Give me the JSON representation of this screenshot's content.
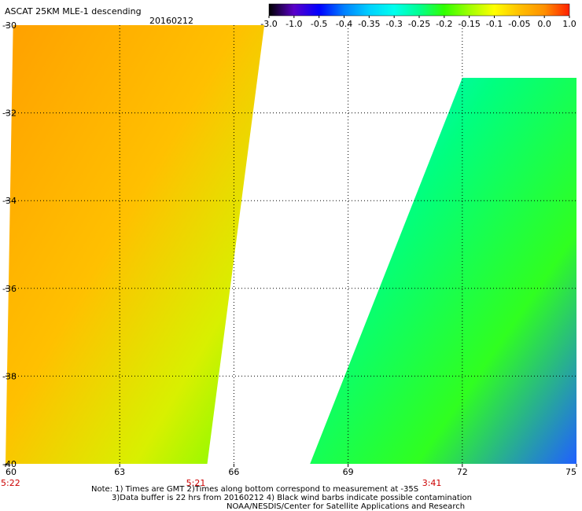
{
  "chart_data": {
    "type": "heatmap",
    "title": "ASCAT 25KM MLE-1 descending",
    "date": "20160212",
    "xlim": [
      60,
      75
    ],
    "ylim": [
      -40,
      -30
    ],
    "x_ticks": [
      {
        "value": 60,
        "label": "60"
      },
      {
        "value": 63,
        "label": "63"
      },
      {
        "value": 66,
        "label": "66"
      },
      {
        "value": 69,
        "label": "69"
      },
      {
        "value": 72,
        "label": "72"
      },
      {
        "value": 75,
        "label": "75"
      }
    ],
    "y_ticks": [
      {
        "value": -30,
        "label": "-30"
      },
      {
        "value": -32,
        "label": "-32"
      },
      {
        "value": -34,
        "label": "-34"
      },
      {
        "value": -36,
        "label": "-36"
      },
      {
        "value": -38,
        "label": "-38"
      },
      {
        "value": -40,
        "label": "-40"
      }
    ],
    "times": [
      {
        "lon": 60,
        "label": "5:22"
      },
      {
        "lon": 65,
        "label": "5:21"
      },
      {
        "lon": 71.2,
        "label": "3:41"
      }
    ],
    "colorbar": {
      "labels": [
        "-3.0",
        "-1.0",
        "-0.5",
        "-0.4",
        "-0.35",
        "-0.3",
        "-0.25",
        "-0.2",
        "-0.15",
        "-0.1",
        "-0.05",
        "0.0",
        "1.0"
      ],
      "colors": [
        "#000000",
        "#5a00c8",
        "#0000ff",
        "#0080ff",
        "#00d0ff",
        "#00ffee",
        "#00ff90",
        "#30ff00",
        "#a0ff00",
        "#ffff00",
        "#ffc000",
        "#ff9000",
        "#ff2000"
      ]
    },
    "swaths": [
      {
        "name": "",
        "lon_left_north": 60.2,
        "lon_right_north": 66.8,
        "lon_left_south": 60.0,
        "lon_right_south": 65.3,
        "lat_north": -30,
        "lat_south": -40
      },
      {
        "name": "",
        "lon_left_north": 72.0,
        "lon_right_north": 75.0,
        "lon_left_south": 68.0,
        "lon_right_south": 75.0,
        "lat_north": -31.2,
        "lat_south": -40
      }
    ],
    "grid": "dotted"
  },
  "notes": [
    "Note: 1) Times are GMT 2)Times along bottom correspond to measurement at -35S",
    "3)Data buffer is 22 hrs from 20160212 4) Black wind barbs indicate possible contamination",
    "NOAA/NESDIS/Center for Satellite Applications and Research"
  ]
}
